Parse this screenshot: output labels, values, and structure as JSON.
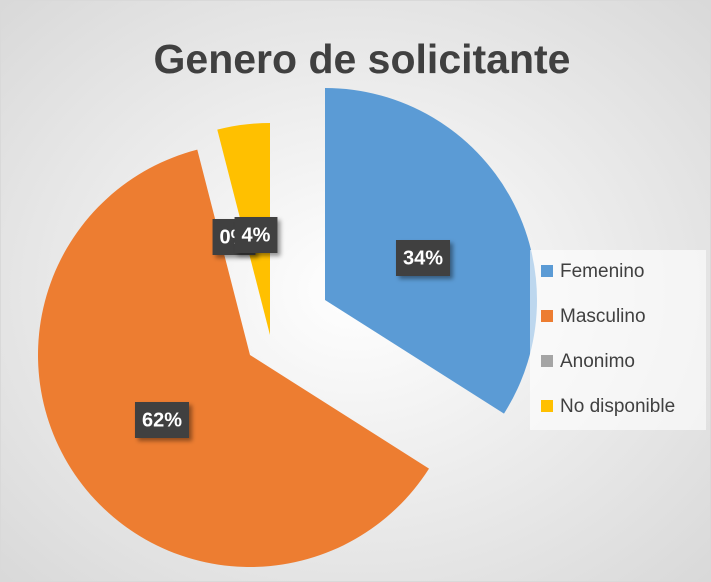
{
  "chart_data": {
    "type": "pie",
    "title": "Genero de solicitante",
    "categories": [
      "Femenino",
      "Masculino",
      "Anonimo",
      "No disponible"
    ],
    "values": [
      34,
      62,
      0,
      4
    ],
    "value_labels": [
      "34%",
      "62%",
      "0%",
      "4%"
    ],
    "colors": [
      "#5b9bd5",
      "#ed7d31",
      "#a5a5a5",
      "#ffc000"
    ],
    "legend": "right"
  }
}
